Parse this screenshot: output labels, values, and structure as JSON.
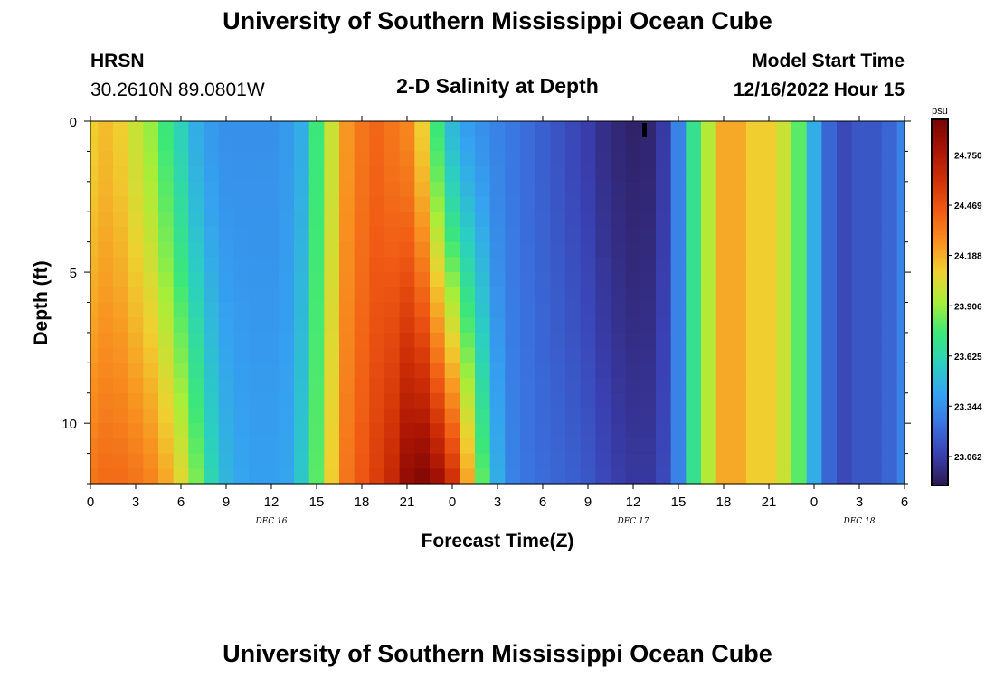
{
  "page": {
    "title": "University of Southern Mississippi Ocean Cube",
    "footer_title": "University of Southern Mississippi Ocean Cube",
    "station": "HRSN",
    "coords": "30.2610N  89.0801W",
    "subtitle": "2-D Salinity at Depth",
    "model_label": "Model Start Time",
    "model_time": "12/16/2022 Hour 15"
  },
  "chart_data": {
    "type": "heatmap",
    "title": "2-D Salinity at Depth",
    "xlabel": "Forecast Time(Z)",
    "ylabel": "Depth (ft)",
    "x_range_hours": [
      0,
      54
    ],
    "y_range_ft": [
      0,
      12
    ],
    "x_ticks": [
      {
        "hour": 0,
        "label": "0"
      },
      {
        "hour": 3,
        "label": "3"
      },
      {
        "hour": 6,
        "label": "6"
      },
      {
        "hour": 9,
        "label": "9"
      },
      {
        "hour": 12,
        "label": "12"
      },
      {
        "hour": 15,
        "label": "15"
      },
      {
        "hour": 18,
        "label": "18"
      },
      {
        "hour": 21,
        "label": "21"
      },
      {
        "hour": 24,
        "label": "0"
      },
      {
        "hour": 27,
        "label": "3"
      },
      {
        "hour": 30,
        "label": "6"
      },
      {
        "hour": 33,
        "label": "9"
      },
      {
        "hour": 36,
        "label": "12"
      },
      {
        "hour": 39,
        "label": "15"
      },
      {
        "hour": 42,
        "label": "18"
      },
      {
        "hour": 45,
        "label": "21"
      },
      {
        "hour": 48,
        "label": "0"
      },
      {
        "hour": 51,
        "label": "3"
      },
      {
        "hour": 54,
        "label": "6"
      }
    ],
    "date_labels": [
      {
        "hour": 12,
        "label": "DEC 16"
      },
      {
        "hour": 36,
        "label": "DEC 17"
      },
      {
        "hour": 51,
        "label": "DEC 18"
      }
    ],
    "y_ticks": [
      {
        "depth": 0,
        "label": "0"
      },
      {
        "depth": 5,
        "label": "5"
      },
      {
        "depth": 10,
        "label": "10"
      }
    ],
    "colorbar": {
      "unit": "psu",
      "min": 22.9,
      "max": 24.95,
      "ticks": [
        "24.750",
        "24.469",
        "24.188",
        "23.906",
        "23.625",
        "23.344",
        "23.062"
      ],
      "colors": [
        "#2c1850",
        "#3a3fb0",
        "#3a72e0",
        "#35a3f0",
        "#2bd0c0",
        "#3ce878",
        "#a8ee38",
        "#f0d030",
        "#f89020",
        "#f05a14",
        "#d03006",
        "#a81404",
        "#7a0404"
      ]
    },
    "time_series": {
      "hours": [
        0,
        1,
        2,
        3,
        4,
        5,
        6,
        7,
        8,
        9,
        10,
        11,
        12,
        13,
        14,
        15,
        16,
        17,
        18,
        19,
        20,
        21,
        22,
        23,
        24,
        25,
        26,
        27,
        28,
        29,
        30,
        31,
        32,
        33,
        34,
        35,
        36,
        37,
        38,
        39,
        40,
        41,
        42,
        43,
        44,
        45,
        46,
        47,
        48,
        49,
        50,
        51,
        52,
        53,
        54
      ],
      "surface_psu": [
        24.1,
        24.15,
        24.1,
        24.0,
        23.9,
        23.75,
        23.6,
        23.45,
        23.38,
        23.35,
        23.35,
        23.35,
        23.35,
        23.38,
        23.45,
        23.75,
        24.0,
        24.25,
        24.35,
        24.4,
        24.35,
        24.3,
        24.1,
        23.75,
        23.5,
        23.4,
        23.35,
        23.3,
        23.26,
        23.22,
        23.18,
        23.14,
        23.1,
        23.06,
        23.0,
        22.97,
        22.95,
        22.96,
        23.05,
        23.3,
        23.7,
        23.95,
        24.2,
        24.2,
        24.1,
        24.1,
        24.0,
        23.8,
        23.45,
        23.2,
        23.1,
        23.15,
        23.15,
        23.2,
        23.3
      ],
      "bottom_psu": [
        24.35,
        24.38,
        24.38,
        24.35,
        24.3,
        24.2,
        24.05,
        23.85,
        23.62,
        23.48,
        23.42,
        23.4,
        23.4,
        23.42,
        23.55,
        23.8,
        24.1,
        24.35,
        24.45,
        24.55,
        24.65,
        24.85,
        24.9,
        24.8,
        24.6,
        24.2,
        23.8,
        23.45,
        23.3,
        23.25,
        23.22,
        23.2,
        23.18,
        23.15,
        23.1,
        23.06,
        23.04,
        23.04,
        23.1,
        23.3,
        23.7,
        23.95,
        24.2,
        24.2,
        24.1,
        24.1,
        24.0,
        23.8,
        23.45,
        23.2,
        23.1,
        23.15,
        23.15,
        23.2,
        23.3
      ]
    }
  }
}
